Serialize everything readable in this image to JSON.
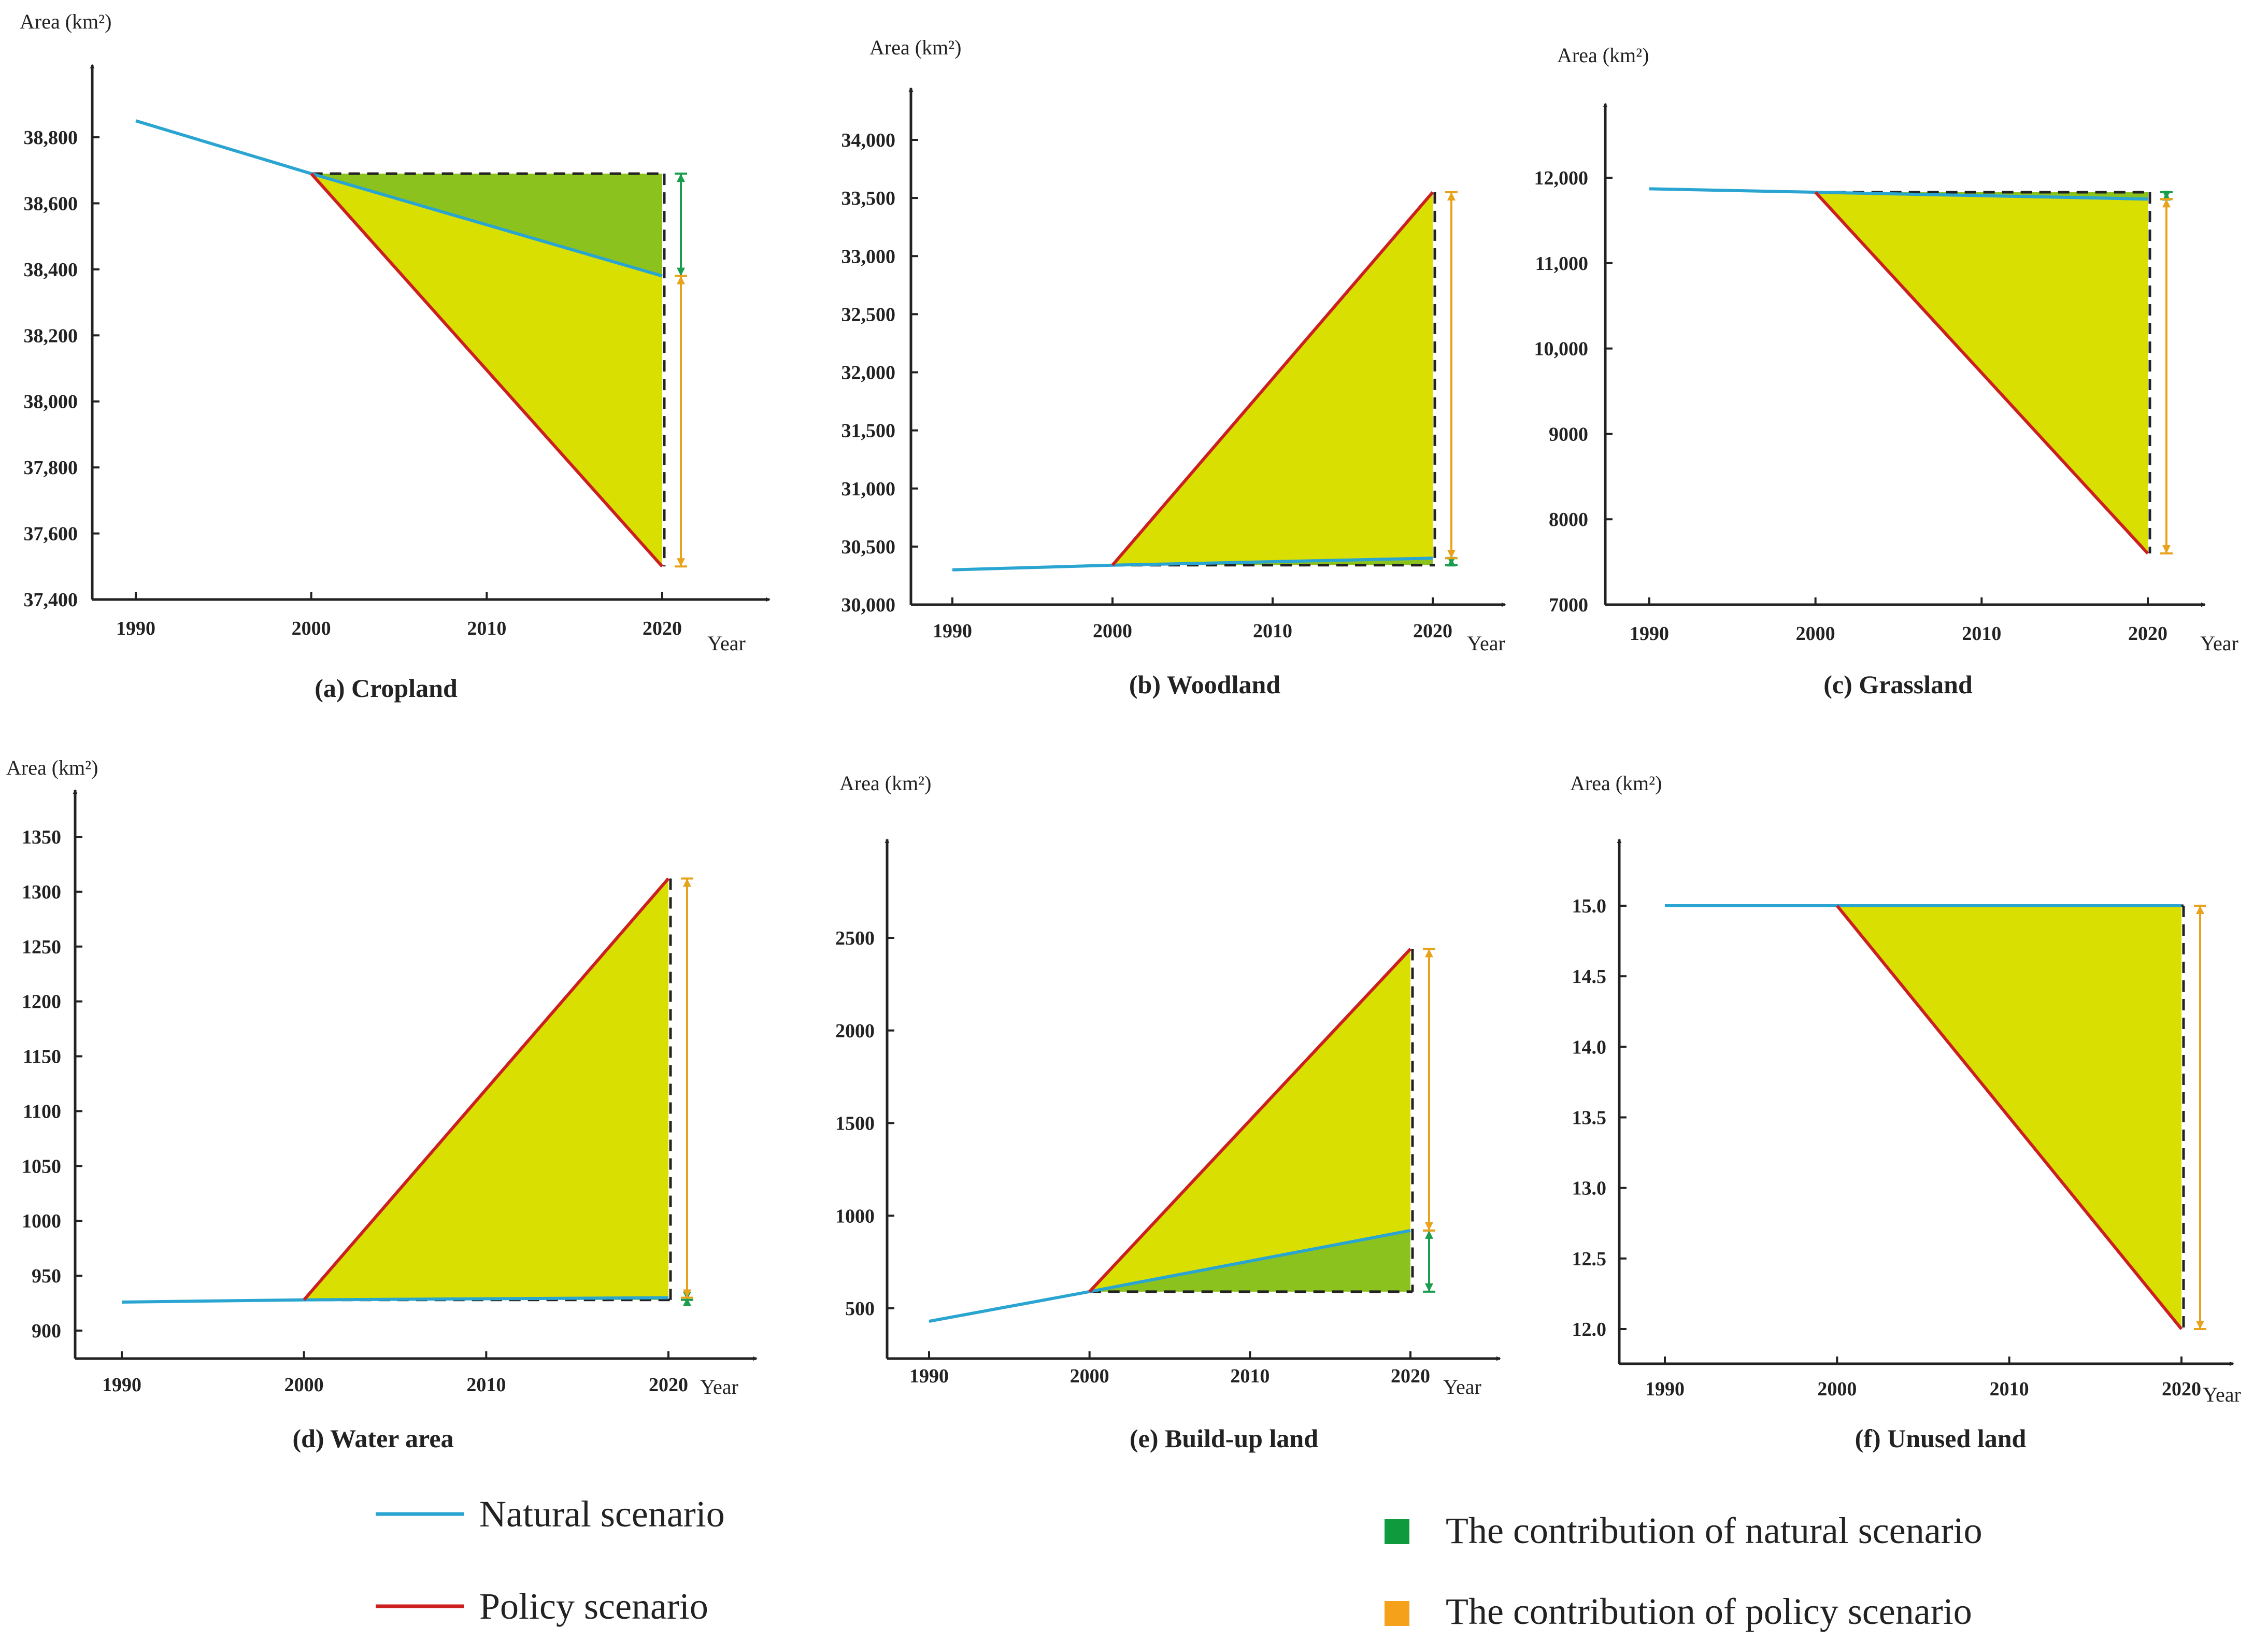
{
  "colors": {
    "natural_line": "#2aa5d1",
    "policy_line": "#cc1f1f",
    "policy_fill": "#d9df00",
    "natural_fill": "#8cc21e",
    "natural_arrow": "#1a9e4e",
    "policy_arrow": "#e8a21c",
    "natural_marker": "#109a3e",
    "policy_marker": "#f5a11a"
  },
  "legend": {
    "natural_line_label": "Natural scenario",
    "policy_line_label": "Policy scenario",
    "natural_contribution_label": "The contribution of natural scenario",
    "policy_contribution_label": "The contribution of policy scenario"
  },
  "chart_data": [
    {
      "type": "line",
      "title": "(a) Cropland",
      "ylabel": "Area (km²)",
      "xlabel": "Year",
      "x_ticks": [
        "1990",
        "2000",
        "2010",
        "2020"
      ],
      "y_ticks": [
        "37,400",
        "37,600",
        "37,800",
        "38,000",
        "38,200",
        "38,400",
        "38,600",
        "38,800"
      ],
      "y_tick_values": [
        37400,
        37600,
        37800,
        38000,
        38200,
        38400,
        38600,
        38800
      ],
      "xlim": [
        1990,
        2020
      ],
      "ylim": [
        37400,
        38800
      ],
      "series": [
        {
          "name": "Natural scenario",
          "x": [
            1990,
            2000,
            2020
          ],
          "values": [
            38850,
            38690,
            38380
          ]
        },
        {
          "name": "Policy scenario",
          "x": [
            2000,
            2020
          ],
          "values": [
            38690,
            37500
          ]
        }
      ]
    },
    {
      "type": "line",
      "title": "(b) Woodland",
      "ylabel": "Area (km²)",
      "xlabel": "Year",
      "x_ticks": [
        "1990",
        "2000",
        "2010",
        "2020"
      ],
      "y_ticks": [
        "30,000",
        "30,500",
        "31,000",
        "31,500",
        "32,000",
        "32,500",
        "33,000",
        "33,500",
        "34,000"
      ],
      "y_tick_values": [
        30000,
        30500,
        31000,
        31500,
        32000,
        32500,
        33000,
        33500,
        34000
      ],
      "xlim": [
        1990,
        2020
      ],
      "ylim": [
        30000,
        34000
      ],
      "series": [
        {
          "name": "Natural scenario",
          "x": [
            1990,
            2000,
            2020
          ],
          "values": [
            30300,
            30340,
            30400
          ]
        },
        {
          "name": "Policy scenario",
          "x": [
            2000,
            2020
          ],
          "values": [
            30340,
            33550
          ]
        }
      ]
    },
    {
      "type": "line",
      "title": "(c) Grassland",
      "ylabel": "Area (km²)",
      "xlabel": "Year",
      "x_ticks": [
        "1990",
        "2000",
        "2010",
        "2020"
      ],
      "y_ticks": [
        "7000",
        "8000",
        "9000",
        "10,000",
        "11,000",
        "12,000"
      ],
      "y_tick_values": [
        7000,
        8000,
        9000,
        10000,
        11000,
        12000
      ],
      "xlim": [
        1990,
        2020
      ],
      "ylim": [
        7000,
        12000
      ],
      "series": [
        {
          "name": "Natural scenario",
          "x": [
            1990,
            2000,
            2020
          ],
          "values": [
            11870,
            11830,
            11750
          ]
        },
        {
          "name": "Policy scenario",
          "x": [
            2000,
            2020
          ],
          "values": [
            11830,
            7600
          ]
        }
      ]
    },
    {
      "type": "line",
      "title": "(d) Water area",
      "ylabel": "Area (km²)",
      "xlabel": "Year",
      "x_ticks": [
        "1990",
        "2000",
        "2010",
        "2020"
      ],
      "y_ticks": [
        "900",
        "950",
        "1000",
        "1050",
        "1100",
        "1150",
        "1200",
        "1250",
        "1300",
        "1350"
      ],
      "y_tick_values": [
        900,
        950,
        1000,
        1050,
        1100,
        1150,
        1200,
        1250,
        1300,
        1350
      ],
      "xlim": [
        1990,
        2020
      ],
      "ylim": [
        900,
        1350
      ],
      "series": [
        {
          "name": "Natural scenario",
          "x": [
            1990,
            2000,
            2020
          ],
          "values": [
            926,
            928,
            930
          ]
        },
        {
          "name": "Policy scenario",
          "x": [
            2000,
            2020
          ],
          "values": [
            928,
            1312
          ]
        }
      ]
    },
    {
      "type": "line",
      "title": "(e) Build-up land",
      "ylabel": "Area (km²)",
      "xlabel": "Year",
      "x_ticks": [
        "1990",
        "2000",
        "2010",
        "2020"
      ],
      "y_ticks": [
        "500",
        "1000",
        "1500",
        "2000",
        "2500"
      ],
      "y_tick_values": [
        500,
        1000,
        1500,
        2000,
        2500
      ],
      "xlim": [
        1990,
        2020
      ],
      "ylim": [
        500,
        2500
      ],
      "series": [
        {
          "name": "Natural scenario",
          "x": [
            1990,
            2000,
            2020
          ],
          "values": [
            430,
            590,
            920
          ]
        },
        {
          "name": "Policy scenario",
          "x": [
            2000,
            2020
          ],
          "values": [
            590,
            2440
          ]
        }
      ]
    },
    {
      "type": "line",
      "title": "(f) Unused land",
      "ylabel": "Area (km²)",
      "xlabel": "Year",
      "x_ticks": [
        "1990",
        "2000",
        "2010",
        "2020"
      ],
      "y_ticks": [
        "12.0",
        "12.5",
        "13.0",
        "13.5",
        "14.0",
        "14.5",
        "15.0"
      ],
      "y_tick_values": [
        12.0,
        12.5,
        13.0,
        13.5,
        14.0,
        14.5,
        15.0
      ],
      "xlim": [
        1990,
        2020
      ],
      "ylim": [
        12.0,
        15.0
      ],
      "series": [
        {
          "name": "Natural scenario",
          "x": [
            1990,
            2000,
            2020
          ],
          "values": [
            15.0,
            15.0,
            15.0
          ]
        },
        {
          "name": "Policy scenario",
          "x": [
            2000,
            2020
          ],
          "values": [
            15.0,
            12.0
          ]
        }
      ]
    }
  ]
}
